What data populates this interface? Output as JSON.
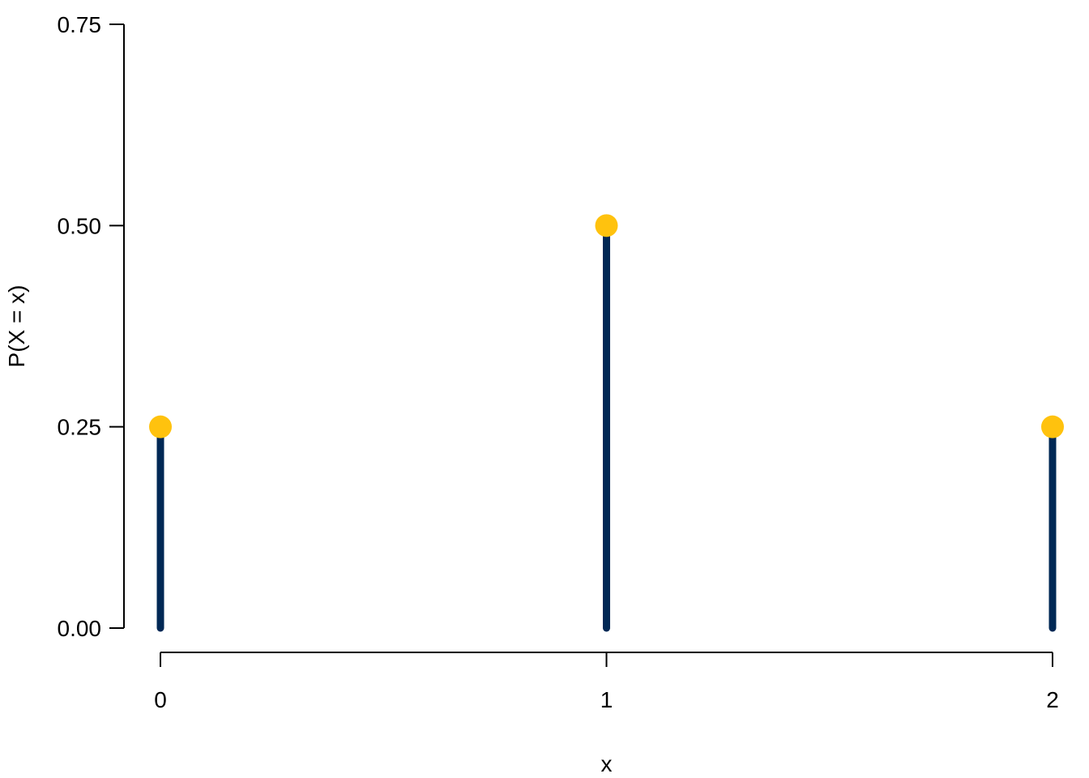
{
  "colors": {
    "stem": "#002855",
    "point": "#FFC20E",
    "axis": "#000000",
    "background": "#FFFFFF"
  },
  "chart_data": {
    "type": "lollipop",
    "title": "",
    "xlabel": "x",
    "ylabel": "P(X = x)",
    "x": [
      0,
      1,
      2
    ],
    "values": [
      0.25,
      0.5,
      0.25
    ],
    "xlim": [
      0,
      2
    ],
    "ylim": [
      0,
      0.75
    ],
    "x_ticks": [
      0,
      1,
      2
    ],
    "x_tick_labels": [
      "0",
      "1",
      "2"
    ],
    "y_ticks": [
      0,
      0.25,
      0.5,
      0.75
    ],
    "y_tick_labels": [
      "0.00",
      "0.25",
      "0.50",
      "0.75"
    ],
    "grid": false,
    "legend": "none"
  }
}
